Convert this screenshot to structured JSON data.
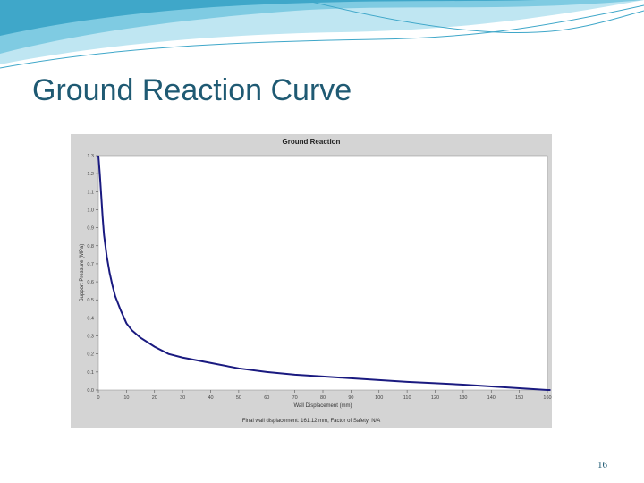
{
  "slide": {
    "title": "Ground Reaction Curve",
    "page_number": "16"
  },
  "colors": {
    "title": "#1f5a73",
    "curve": "#1a1a80",
    "panel": "#d4d4d4",
    "banner_light": "#bfe6f2",
    "banner_mid": "#7fcbe2",
    "banner_dark": "#3fa7c9"
  },
  "chart_data": {
    "type": "line",
    "title": "Ground Reaction",
    "xlabel": "Wall Displacement (mm)",
    "ylabel": "Support Pressure (MPa)",
    "xlim": [
      0,
      160
    ],
    "ylim": [
      0,
      1.3
    ],
    "x_ticks": [
      "0",
      "10",
      "20",
      "30",
      "40",
      "50",
      "60",
      "70",
      "80",
      "90",
      "100",
      "110",
      "120",
      "130",
      "140",
      "150",
      "160"
    ],
    "y_ticks": [
      "0.0",
      "0.1",
      "0.2",
      "0.3",
      "0.4",
      "0.5",
      "0.6",
      "0.7",
      "0.8",
      "0.9",
      "1.0",
      "1.1",
      "1.2",
      "1.3"
    ],
    "grid": false,
    "footer": "Final wall displacement: 161.12 mm,  Factor of Safety: N/A",
    "series": [
      {
        "x": [
          0,
          0.5,
          1,
          1.5,
          2,
          3,
          4,
          5,
          6,
          8,
          10,
          12,
          15,
          20,
          25,
          30,
          40,
          50,
          60,
          70,
          80,
          90,
          100,
          110,
          120,
          130,
          140,
          150,
          155,
          160,
          161.12
        ],
        "y": [
          1.3,
          1.2,
          1.08,
          0.96,
          0.86,
          0.74,
          0.65,
          0.58,
          0.52,
          0.44,
          0.37,
          0.33,
          0.29,
          0.24,
          0.2,
          0.18,
          0.15,
          0.12,
          0.1,
          0.085,
          0.075,
          0.065,
          0.055,
          0.045,
          0.038,
          0.03,
          0.02,
          0.01,
          0.005,
          0.0,
          0.0
        ]
      }
    ]
  }
}
